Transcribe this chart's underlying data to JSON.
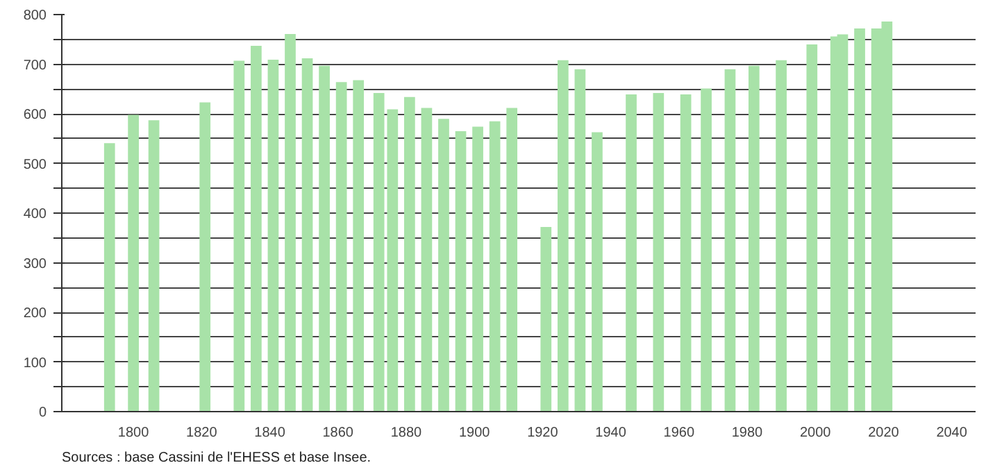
{
  "chart_data": {
    "type": "bar",
    "x": [
      1793,
      1800,
      1806,
      1821,
      1831,
      1836,
      1841,
      1846,
      1851,
      1856,
      1861,
      1866,
      1872,
      1876,
      1881,
      1886,
      1891,
      1896,
      1901,
      1906,
      1911,
      1921,
      1926,
      1931,
      1936,
      1946,
      1954,
      1962,
      1968,
      1975,
      1982,
      1990,
      1999,
      2006,
      2008,
      2013,
      2018,
      2021
    ],
    "values": [
      541,
      598,
      587,
      623,
      707,
      737,
      709,
      761,
      712,
      697,
      664,
      668,
      642,
      609,
      634,
      612,
      590,
      565,
      574,
      585,
      612,
      372,
      708,
      690,
      563,
      639,
      642,
      639,
      651,
      690,
      697,
      708,
      740,
      756,
      760,
      772,
      772,
      786
    ],
    "color": "#a8e2a8",
    "xlim": [
      1779,
      2047
    ],
    "xticks": [
      1800,
      1820,
      1840,
      1860,
      1880,
      1900,
      1920,
      1940,
      1960,
      1980,
      2000,
      2020,
      2040
    ],
    "ylim": [
      0,
      800
    ],
    "yticks": [
      0,
      {
        "value": 50,
        "label": null
      },
      100,
      {
        "value": 150,
        "label": null
      },
      200,
      {
        "value": 250,
        "label": null
      },
      300,
      {
        "value": 350,
        "label": null
      },
      400,
      {
        "value": 450,
        "label": null
      },
      500,
      {
        "value": 550,
        "label": null
      },
      600,
      {
        "value": 650,
        "label": null
      },
      700,
      {
        "value": 750,
        "label": null
      },
      800
    ],
    "grid": "y",
    "annotations": [
      "Sources : base Cassini de l'EHESS et base Insee."
    ]
  }
}
